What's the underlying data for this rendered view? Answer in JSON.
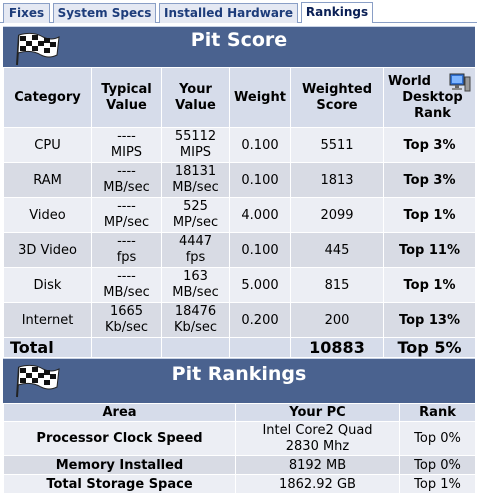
{
  "tabs": [
    "Fixes",
    "System Specs",
    "Installed Hardware",
    "Rankings"
  ],
  "pit_score": {
    "title": "Pit Score",
    "headers": {
      "category": "Category",
      "typical": "Typical Value",
      "your": "Your Value",
      "weight": "Weight",
      "weighted": "Weighted Score",
      "rank_line1": "World",
      "rank_line2": "Desktop Rank"
    },
    "rows": [
      {
        "category": "CPU",
        "typical_a": "----",
        "typical_b": "MIPS",
        "your_a": "55112",
        "your_b": "MIPS",
        "weight": "0.100",
        "weighted": "5511",
        "rank": "Top 3%"
      },
      {
        "category": "RAM",
        "typical_a": "----",
        "typical_b": "MB/sec",
        "your_a": "18131",
        "your_b": "MB/sec",
        "weight": "0.100",
        "weighted": "1813",
        "rank": "Top 3%"
      },
      {
        "category": "Video",
        "typical_a": "----",
        "typical_b": "MP/sec",
        "your_a": "525",
        "your_b": "MP/sec",
        "weight": "4.000",
        "weighted": "2099",
        "rank": "Top 1%"
      },
      {
        "category": "3D Video",
        "typical_a": "----",
        "typical_b": "fps",
        "your_a": "4447",
        "your_b": "fps",
        "weight": "0.100",
        "weighted": "445",
        "rank": "Top 11%"
      },
      {
        "category": "Disk",
        "typical_a": "----",
        "typical_b": "MB/sec",
        "your_a": "163",
        "your_b": "MB/sec",
        "weight": "5.000",
        "weighted": "815",
        "rank": "Top 1%"
      },
      {
        "category": "Internet",
        "typical_a": "1665",
        "typical_b": "Kb/sec",
        "your_a": "18476",
        "your_b": "Kb/sec",
        "weight": "0.200",
        "weighted": "200",
        "rank": "Top 13%"
      }
    ],
    "total": {
      "label": "Total",
      "weighted": "10883",
      "rank": "Top 5%"
    }
  },
  "pit_rankings": {
    "title": "Pit Rankings",
    "headers": {
      "area": "Area",
      "your_pc": "Your PC",
      "rank": "Rank"
    },
    "rows": [
      {
        "area": "Processor Clock Speed",
        "pc_a": "Intel Core2 Quad",
        "pc_b": "2830 Mhz",
        "rank": "Top 0%"
      },
      {
        "area": "Memory Installed",
        "pc_a": "8192 MB",
        "pc_b": "",
        "rank": "Top 0%"
      },
      {
        "area": "Total Storage Space",
        "pc_a": "1862.92 GB",
        "pc_b": "",
        "rank": "Top 1%"
      }
    ]
  },
  "colors": {
    "header_bar": "#4a628f",
    "header_cell": "#d6dcea",
    "row_light": "#eceef4",
    "row_dark": "#d8dbe4",
    "tab_text": "#1d3c7a"
  },
  "icons": {
    "flag": "checkered-flag-icon",
    "monitor": "desktop-computer-icon"
  }
}
